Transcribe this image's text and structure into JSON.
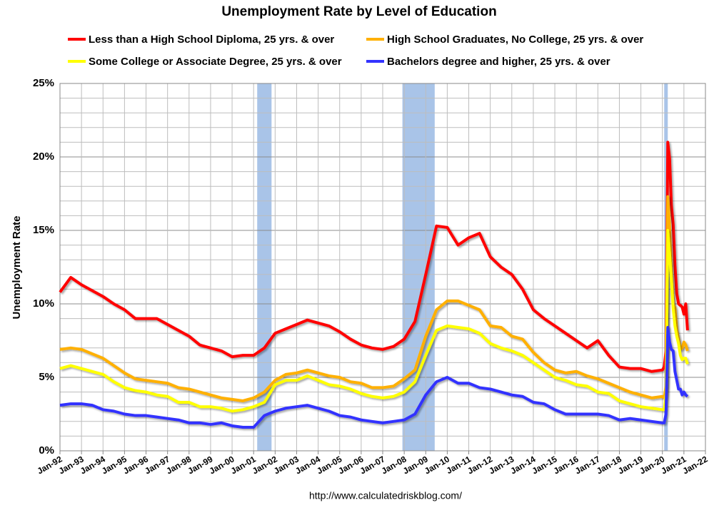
{
  "chart_data": {
    "type": "line",
    "title": "Unemployment Rate by Level of Education",
    "y_label": "Unemployment Rate",
    "source": "http://www.calculatedriskblog.com/",
    "x": [
      "1992-01",
      "1992-07",
      "1993-01",
      "1993-07",
      "1994-01",
      "1994-07",
      "1995-01",
      "1995-07",
      "1996-01",
      "1996-07",
      "1997-01",
      "1997-07",
      "1998-01",
      "1998-07",
      "1999-01",
      "1999-07",
      "2000-01",
      "2000-07",
      "2001-01",
      "2001-07",
      "2002-01",
      "2002-07",
      "2003-01",
      "2003-07",
      "2004-01",
      "2004-07",
      "2005-01",
      "2005-07",
      "2006-01",
      "2006-07",
      "2007-01",
      "2007-07",
      "2008-01",
      "2008-07",
      "2009-01",
      "2009-07",
      "2010-01",
      "2010-07",
      "2011-01",
      "2011-07",
      "2012-01",
      "2012-07",
      "2013-01",
      "2013-07",
      "2014-01",
      "2014-07",
      "2015-01",
      "2015-07",
      "2016-01",
      "2016-07",
      "2017-01",
      "2017-07",
      "2018-01",
      "2018-07",
      "2019-01",
      "2019-07",
      "2020-01",
      "2020-02",
      "2020-03",
      "2020-04",
      "2020-05",
      "2020-06",
      "2020-07",
      "2020-08",
      "2020-09",
      "2020-10",
      "2020-11",
      "2020-12",
      "2021-01",
      "2021-02",
      "2021-03"
    ],
    "series": [
      {
        "name": "Less than a High School Diploma, 25 yrs. & over",
        "color": "#ff0000",
        "values": [
          10.8,
          11.8,
          11.3,
          10.9,
          10.5,
          10.0,
          9.6,
          9.0,
          9.0,
          9.0,
          8.6,
          8.2,
          7.8,
          7.2,
          7.0,
          6.8,
          6.4,
          6.5,
          6.5,
          7.0,
          8.0,
          8.3,
          8.6,
          8.9,
          8.7,
          8.5,
          8.1,
          7.6,
          7.2,
          7.0,
          6.9,
          7.1,
          7.6,
          8.8,
          12.0,
          15.3,
          15.2,
          14.0,
          14.5,
          14.8,
          13.2,
          12.5,
          12.0,
          11.0,
          9.6,
          9.0,
          8.5,
          8.0,
          7.5,
          7.0,
          7.5,
          6.5,
          5.7,
          5.6,
          5.6,
          5.4,
          5.5,
          5.7,
          6.8,
          21.0,
          19.9,
          16.7,
          15.4,
          12.6,
          10.7,
          10.0,
          9.9,
          9.8,
          9.3,
          10.0,
          8.2
        ]
      },
      {
        "name": "High School Graduates, No College, 25 yrs. & over",
        "color": "#ffb000",
        "values": [
          6.9,
          7.0,
          6.9,
          6.6,
          6.3,
          5.8,
          5.3,
          4.9,
          4.8,
          4.7,
          4.6,
          4.3,
          4.2,
          4.0,
          3.8,
          3.6,
          3.5,
          3.4,
          3.6,
          4.0,
          4.8,
          5.2,
          5.3,
          5.5,
          5.3,
          5.1,
          5.0,
          4.7,
          4.6,
          4.3,
          4.3,
          4.4,
          4.9,
          5.5,
          7.8,
          9.6,
          10.2,
          10.2,
          9.9,
          9.6,
          8.5,
          8.4,
          7.8,
          7.6,
          6.7,
          6.0,
          5.5,
          5.3,
          5.4,
          5.1,
          4.9,
          4.6,
          4.3,
          4.0,
          3.8,
          3.6,
          3.7,
          3.6,
          4.4,
          17.3,
          15.3,
          12.2,
          10.0,
          9.7,
          8.2,
          7.6,
          6.9,
          7.0,
          7.4,
          7.2,
          6.8
        ]
      },
      {
        "name": "Some College or Associate Degree, 25 yrs. & over",
        "color": "#ffff00",
        "values": [
          5.6,
          5.8,
          5.6,
          5.4,
          5.2,
          4.7,
          4.3,
          4.1,
          4.0,
          3.8,
          3.7,
          3.3,
          3.3,
          3.0,
          3.0,
          2.9,
          2.7,
          2.8,
          3.0,
          3.3,
          4.5,
          4.8,
          4.8,
          5.1,
          4.8,
          4.5,
          4.4,
          4.2,
          3.9,
          3.7,
          3.6,
          3.7,
          4.0,
          4.7,
          6.5,
          8.2,
          8.5,
          8.4,
          8.3,
          8.0,
          7.3,
          7.0,
          6.8,
          6.5,
          6.0,
          5.5,
          5.0,
          4.8,
          4.5,
          4.4,
          4.0,
          3.9,
          3.4,
          3.2,
          3.0,
          2.9,
          2.8,
          2.8,
          3.8,
          15.0,
          13.4,
          11.6,
          9.7,
          8.5,
          7.8,
          7.3,
          6.5,
          6.2,
          6.3,
          6.3,
          5.9
        ]
      },
      {
        "name": "Bachelors degree and higher, 25 yrs. & over",
        "color": "#3333ff",
        "values": [
          3.1,
          3.2,
          3.2,
          3.1,
          2.8,
          2.7,
          2.5,
          2.4,
          2.4,
          2.3,
          2.2,
          2.1,
          1.9,
          1.9,
          1.8,
          1.9,
          1.7,
          1.6,
          1.6,
          2.4,
          2.7,
          2.9,
          3.0,
          3.1,
          2.9,
          2.7,
          2.4,
          2.3,
          2.1,
          2.0,
          1.9,
          2.0,
          2.1,
          2.5,
          3.8,
          4.7,
          5.0,
          4.6,
          4.6,
          4.3,
          4.2,
          4.0,
          3.8,
          3.7,
          3.3,
          3.2,
          2.8,
          2.5,
          2.5,
          2.5,
          2.5,
          2.4,
          2.1,
          2.2,
          2.1,
          2.0,
          1.9,
          1.9,
          2.5,
          8.4,
          7.4,
          6.9,
          6.8,
          5.4,
          4.8,
          4.2,
          4.2,
          3.8,
          4.0,
          3.8,
          3.7
        ]
      }
    ],
    "recessions": [
      [
        "2001-03",
        "2001-11"
      ],
      [
        "2007-12",
        "2009-06"
      ],
      [
        "2020-02",
        "2020-04"
      ]
    ],
    "recession_color": "#a9c4e8",
    "xlim": [
      "1992-01",
      "2022-01"
    ],
    "xticks": [
      {
        "value": "1992-01",
        "label": "Jan-92"
      },
      {
        "value": "1993-01",
        "label": "Jan-93"
      },
      {
        "value": "1994-01",
        "label": "Jan-94"
      },
      {
        "value": "1995-01",
        "label": "Jan-95"
      },
      {
        "value": "1996-01",
        "label": "Jan-96"
      },
      {
        "value": "1997-01",
        "label": "Jan-97"
      },
      {
        "value": "1998-01",
        "label": "Jan-98"
      },
      {
        "value": "1999-01",
        "label": "Jan-99"
      },
      {
        "value": "2000-01",
        "label": "Jan-00"
      },
      {
        "value": "2001-01",
        "label": "Jan-01"
      },
      {
        "value": "2002-01",
        "label": "Jan-02"
      },
      {
        "value": "2003-01",
        "label": "Jan-03"
      },
      {
        "value": "2004-01",
        "label": "Jan-04"
      },
      {
        "value": "2005-01",
        "label": "Jan-05"
      },
      {
        "value": "2006-01",
        "label": "Jan-06"
      },
      {
        "value": "2007-01",
        "label": "Jan-07"
      },
      {
        "value": "2008-01",
        "label": "Jan-08"
      },
      {
        "value": "2009-01",
        "label": "Jan-09"
      },
      {
        "value": "2010-01",
        "label": "Jan-10"
      },
      {
        "value": "2011-01",
        "label": "Jan-11"
      },
      {
        "value": "2012-01",
        "label": "Jan-12"
      },
      {
        "value": "2013-01",
        "label": "Jan-13"
      },
      {
        "value": "2014-01",
        "label": "Jan-14"
      },
      {
        "value": "2015-01",
        "label": "Jan-15"
      },
      {
        "value": "2016-01",
        "label": "Jan-16"
      },
      {
        "value": "2017-01",
        "label": "Jan-17"
      },
      {
        "value": "2018-01",
        "label": "Jan-18"
      },
      {
        "value": "2019-01",
        "label": "Jan-19"
      },
      {
        "value": "2020-01",
        "label": "Jan-20"
      },
      {
        "value": "2021-01",
        "label": "Jan-21"
      },
      {
        "value": "2022-01",
        "label": "Jan-22"
      }
    ],
    "ylim": [
      0,
      25
    ],
    "yticks": [
      {
        "value": 0,
        "label": "0%"
      },
      {
        "value": 5,
        "label": "5%"
      },
      {
        "value": 10,
        "label": "10%"
      },
      {
        "value": 15,
        "label": "15%"
      },
      {
        "value": 20,
        "label": "20%"
      },
      {
        "value": 25,
        "label": "25%"
      }
    ],
    "minor_yticks": [
      1,
      2,
      3,
      4,
      6,
      7,
      8,
      9,
      11,
      12,
      13,
      14,
      16,
      17,
      18,
      19,
      21,
      22,
      23,
      24
    ],
    "grid": true
  }
}
